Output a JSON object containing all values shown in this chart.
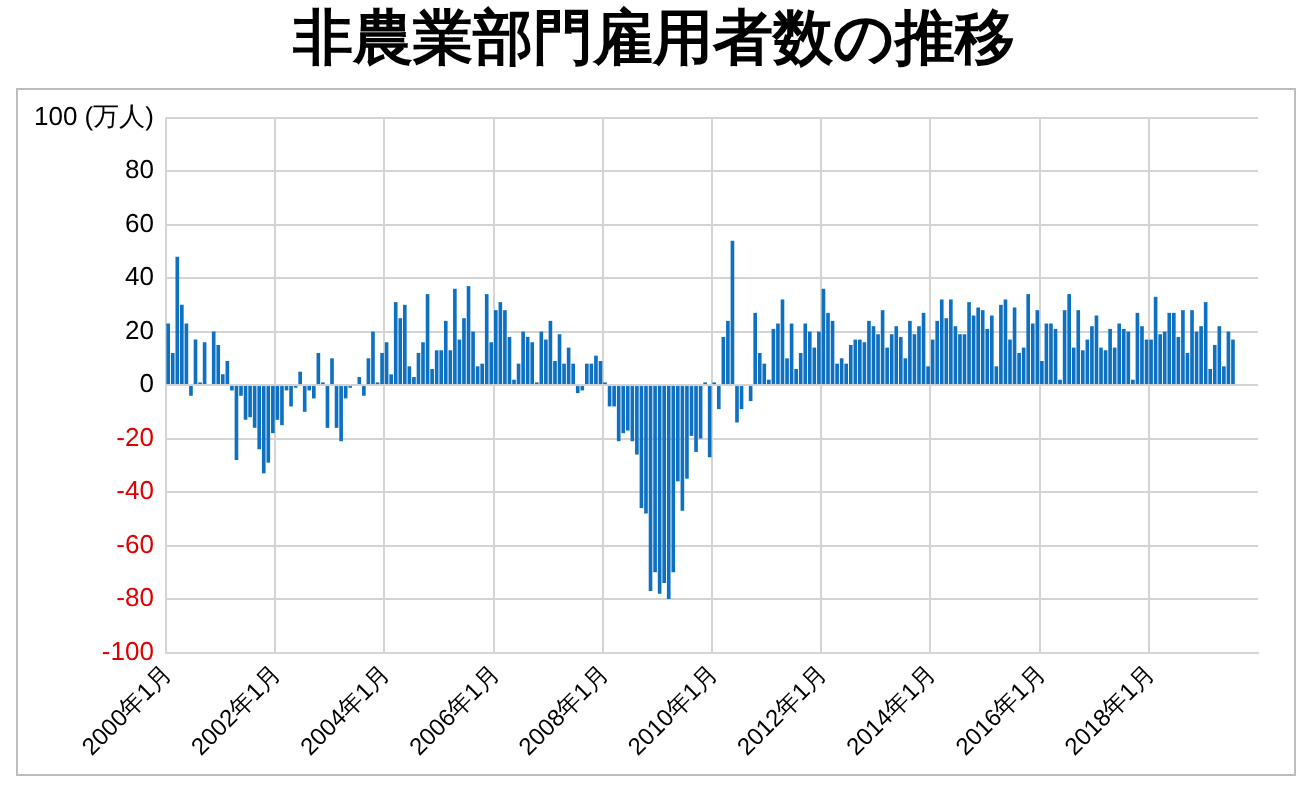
{
  "chart_data": {
    "type": "bar",
    "title": "非農業部門雇用者数の推移",
    "categories": [
      "2000年1月",
      null,
      null,
      null,
      null,
      null,
      null,
      null,
      null,
      null,
      null,
      null,
      null,
      null,
      null,
      null,
      null,
      null,
      null,
      null,
      null,
      null,
      null,
      null,
      "2002年1月",
      null,
      null,
      null,
      null,
      null,
      null,
      null,
      null,
      null,
      null,
      null,
      null,
      null,
      null,
      null,
      null,
      null,
      null,
      null,
      null,
      null,
      null,
      null,
      "2004年1月",
      null,
      null,
      null,
      null,
      null,
      null,
      null,
      null,
      null,
      null,
      null,
      null,
      null,
      null,
      null,
      null,
      null,
      null,
      null,
      null,
      null,
      null,
      null,
      "2006年1月",
      null,
      null,
      null,
      null,
      null,
      null,
      null,
      null,
      null,
      null,
      null,
      null,
      null,
      null,
      null,
      null,
      null,
      null,
      null,
      null,
      null,
      null,
      null,
      "2008年1月",
      null,
      null,
      null,
      null,
      null,
      null,
      null,
      null,
      null,
      null,
      null,
      null,
      null,
      null,
      null,
      null,
      null,
      null,
      null,
      null,
      null,
      null,
      null,
      "2010年1月",
      null,
      null,
      null,
      null,
      null,
      null,
      null,
      null,
      null,
      null,
      null,
      null,
      null,
      null,
      null,
      null,
      null,
      null,
      null,
      null,
      null,
      null,
      null,
      "2012年1月",
      null,
      null,
      null,
      null,
      null,
      null,
      null,
      null,
      null,
      null,
      null,
      null,
      null,
      null,
      null,
      null,
      null,
      null,
      null,
      null,
      null,
      null,
      null,
      "2014年1月",
      null,
      null,
      null,
      null,
      null,
      null,
      null,
      null,
      null,
      null,
      null,
      null,
      null,
      null,
      null,
      null,
      null,
      null,
      null,
      null,
      null,
      null,
      null,
      "2016年1月",
      null,
      null,
      null,
      null,
      null,
      null,
      null,
      null,
      null,
      null,
      null,
      null,
      null,
      null,
      null,
      null,
      null,
      null,
      null,
      null,
      null,
      null,
      null,
      "2018年1月",
      null,
      null,
      null,
      null,
      null,
      null,
      null,
      null,
      null,
      null,
      null,
      null,
      null,
      null,
      null,
      null,
      null,
      null,
      null,
      null,
      null,
      null,
      null
    ],
    "values": [
      23,
      12,
      48,
      30,
      23,
      -4,
      17,
      1,
      16,
      0,
      20,
      15,
      4,
      9,
      -2,
      -28,
      -4,
      -13,
      -12,
      -16,
      -24,
      -33,
      -29,
      -18,
      -13,
      -15,
      -2,
      -8,
      -1,
      5,
      -10,
      -2,
      -5,
      12,
      1,
      -16,
      10,
      -16,
      -21,
      -5,
      -1,
      0,
      3,
      -4,
      10,
      20,
      1,
      12,
      16,
      4,
      31,
      25,
      30,
      7,
      3,
      12,
      16,
      34,
      6,
      13,
      13,
      24,
      13,
      36,
      17,
      25,
      37,
      20,
      7,
      8,
      34,
      16,
      28,
      31,
      28,
      18,
      2,
      8,
      20,
      18,
      16,
      1,
      20,
      17,
      24,
      9,
      19,
      8,
      14,
      8,
      -3,
      -2,
      8,
      8,
      11,
      9,
      1,
      -8,
      -8,
      -21,
      -18,
      -17,
      -21,
      -26,
      -46,
      -48,
      -77,
      -70,
      -78,
      -74,
      -80,
      -70,
      -36,
      -47,
      -35,
      -19,
      -25,
      -20,
      1,
      -27,
      1,
      -9,
      18,
      24,
      54,
      -14,
      -9,
      0,
      -6,
      27,
      12,
      8,
      2,
      21,
      23,
      32,
      10,
      23,
      6,
      12,
      23,
      20,
      14,
      20,
      36,
      27,
      24,
      8,
      10,
      8,
      15,
      17,
      17,
      16,
      24,
      22,
      19,
      28,
      14,
      19,
      22,
      18,
      10,
      24,
      19,
      22,
      27,
      7,
      17,
      24,
      32,
      25,
      32,
      22,
      19,
      19,
      31,
      26,
      29,
      28,
      21,
      26,
      7,
      30,
      32,
      17,
      29,
      12,
      14,
      34,
      23,
      28,
      9,
      23,
      23,
      21,
      2,
      28,
      34,
      14,
      28,
      13,
      17,
      22,
      26,
      14,
      13,
      21,
      14,
      23,
      21,
      20,
      2,
      27,
      22,
      17,
      17,
      33,
      19,
      20,
      27,
      27,
      18,
      28,
      12,
      28,
      20,
      22,
      31,
      6,
      15,
      22,
      7,
      20,
      17,
      null,
      null,
      null,
      null,
      null
    ],
    "color": "#0e70c0",
    "ylim": [
      -100,
      100
    ],
    "yticks": [
      -100,
      -80,
      -60,
      -40,
      -20,
      0,
      20,
      40,
      60,
      80,
      {
        "value": 100,
        "label": "100 (万人)"
      }
    ],
    "grid": true
  }
}
